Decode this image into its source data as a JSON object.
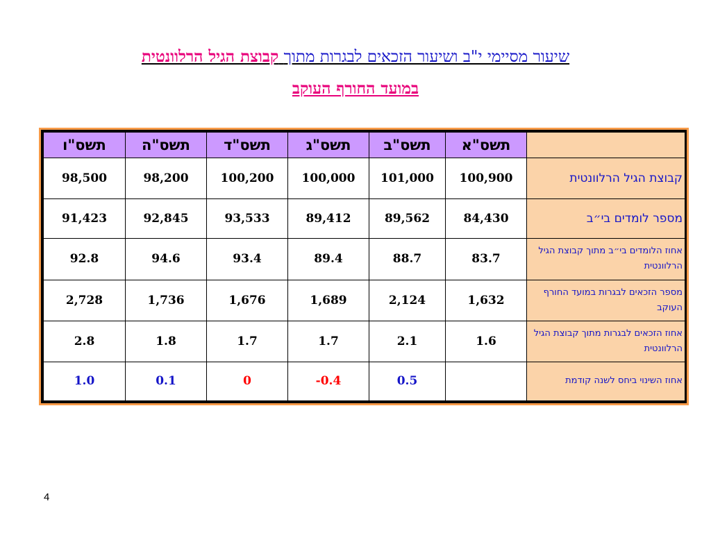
{
  "title": {
    "line1_part1": "שיעור מסיימי י\"ב ושיעור הזכאים לבגרות מתוך",
    "line1_part2": "קבוצת הגיל הרלוונטית",
    "line2": "במועד החורף העוקב"
  },
  "table": {
    "columns": [
      "תשס\"א",
      "תשס\"ב",
      "תשס\"ג",
      "תשס\"ד",
      "תשס\"ה",
      "תשס\"ו"
    ],
    "rows": [
      {
        "label": "קבוצת הגיל הרלוונטית",
        "values": [
          "100,900",
          "101,000",
          "100,000",
          "100,200",
          "98,200",
          "98,500"
        ]
      },
      {
        "label": "מספר לומדים בי״ב",
        "values": [
          "84,430",
          "89,562",
          "89,412",
          "93,533",
          "92,845",
          "91,423"
        ]
      },
      {
        "label": "אחוז הלומדים בי״ב מתוך קבוצת הגיל הרלוונטית",
        "values": [
          "83.7",
          "88.7",
          "89.4",
          "93.4",
          "94.6",
          "92.8"
        ]
      },
      {
        "label": "מספר הזכאים לבגרות במועד החורף העוקב",
        "values": [
          "1,632",
          "2,124",
          "1,689",
          "1,676",
          "1,736",
          "2,728"
        ]
      },
      {
        "label": "אחוז הזכאים לבגרות מתוך קבוצת הגיל הרלוונטית",
        "values": [
          "1.6",
          "2.1",
          "1.7",
          "1.7",
          "1.8",
          "2.8"
        ]
      },
      {
        "label": "אחוז השינוי ביחס לשנה קודמת",
        "values": [
          "",
          "0.5",
          "-0.4",
          "0",
          "0.1",
          "1.0"
        ]
      }
    ]
  },
  "page_number": "4",
  "colors": {
    "title_blue": "#1515c8",
    "title_red": "#e8007a",
    "header_bg": "#cc99ff",
    "label_bg": "#fbd3a9",
    "frame": "#f79b49",
    "change_positive": "#1515c8",
    "change_negative": "#ff0000"
  }
}
